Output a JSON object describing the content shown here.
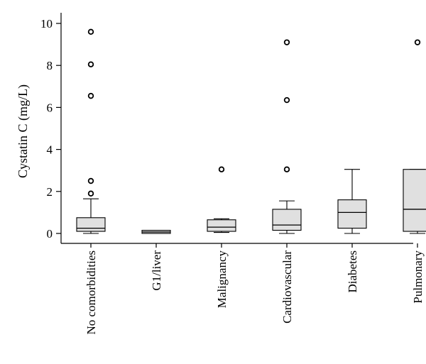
{
  "chart_data": {
    "type": "box",
    "ylabel": "Cystatin C (mg/L)",
    "ylim": [
      -0.4,
      10.5
    ],
    "yticks": [
      0,
      2,
      4,
      6,
      8,
      10
    ],
    "grid": false,
    "categories": [
      "No comorbidities",
      "G1/liver",
      "Malignancy",
      "Cardiovascular",
      "Diabetes",
      "Pulmonary"
    ],
    "boxes": [
      {
        "category": "No comorbidities",
        "min": 0.0,
        "q1": 0.1,
        "median": 0.25,
        "q3": 0.75,
        "max": 1.65,
        "outliers": [
          1.9,
          2.5,
          6.55,
          8.05,
          9.6
        ]
      },
      {
        "category": "G1/liver",
        "min": 0.0,
        "q1": 0.0,
        "median": 0.07,
        "q3": 0.15,
        "max": 0.15,
        "outliers": []
      },
      {
        "category": "Malignancy",
        "min": 0.05,
        "q1": 0.1,
        "median": 0.3,
        "q3": 0.65,
        "max": 0.7,
        "outliers": [
          3.05
        ]
      },
      {
        "category": "Cardiovascular",
        "min": 0.0,
        "q1": 0.15,
        "median": 0.4,
        "q3": 1.15,
        "max": 1.55,
        "outliers": [
          3.05,
          6.35,
          9.1
        ]
      },
      {
        "category": "Diabetes",
        "min": 0.0,
        "q1": 0.25,
        "median": 1.0,
        "q3": 1.6,
        "max": 3.05,
        "outliers": []
      },
      {
        "category": "Pulmonary",
        "min": 0.0,
        "q1": 0.1,
        "median": 1.15,
        "q3": 3.05,
        "max": 3.05,
        "outliers": [
          9.1
        ]
      }
    ]
  }
}
